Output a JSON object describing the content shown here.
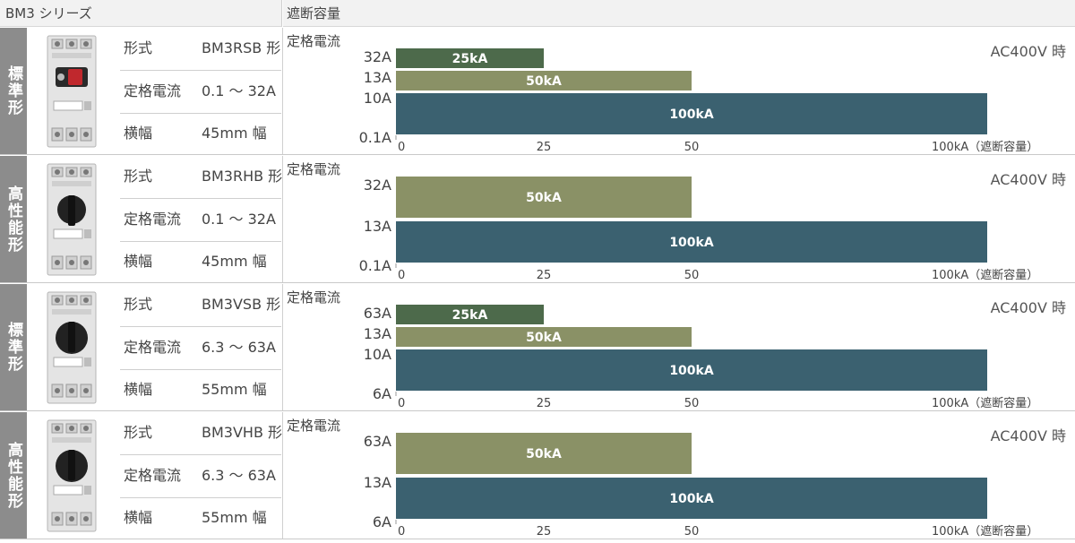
{
  "header": {
    "series_title": "BM3 シリーズ",
    "capacity_title": "遮断容量"
  },
  "rows": [
    {
      "type_label": "標準形",
      "specs": [
        {
          "label": "形式",
          "value": "BM3RSB 形"
        },
        {
          "label": "定格電流",
          "value": "0.1 ～ 32A"
        },
        {
          "label": "横幅",
          "value": "45mm 幅"
        }
      ],
      "product_style": "red-knob",
      "chart_data": {
        "type": "bar",
        "orientation": "horizontal",
        "ylabel": "定格電流",
        "condition": "AC400V 時",
        "x_ticks": [
          "0",
          "25",
          "50",
          "100kA（遮断容量）"
        ],
        "xlim": [
          0,
          100
        ],
        "y_tick_labels": [
          "32A",
          "13A",
          "10A",
          "0.1A"
        ],
        "bars": [
          {
            "label": "25kA",
            "value": 25,
            "color": "#4d6a4b"
          },
          {
            "label": "50kA",
            "value": 50,
            "color": "#8a9166"
          },
          {
            "label": "100kA",
            "value": 100,
            "color": "#3b6170"
          }
        ]
      }
    },
    {
      "type_label": "高性能形",
      "specs": [
        {
          "label": "形式",
          "value": "BM3RHB 形"
        },
        {
          "label": "定格電流",
          "value": "0.1 ～ 32A"
        },
        {
          "label": "横幅",
          "value": "45mm 幅"
        }
      ],
      "product_style": "black-knob",
      "chart_data": {
        "type": "bar",
        "orientation": "horizontal",
        "ylabel": "定格電流",
        "condition": "AC400V 時",
        "x_ticks": [
          "0",
          "25",
          "50",
          "100kA（遮断容量）"
        ],
        "xlim": [
          0,
          100
        ],
        "y_tick_labels": [
          "32A",
          "13A",
          "0.1A"
        ],
        "bars": [
          {
            "label": "50kA",
            "value": 50,
            "color": "#8a9166"
          },
          {
            "label": "100kA",
            "value": 100,
            "color": "#3b6170"
          }
        ]
      }
    },
    {
      "type_label": "標準形",
      "specs": [
        {
          "label": "形式",
          "value": "BM3VSB 形"
        },
        {
          "label": "定格電流",
          "value": "6.3 ～ 63A"
        },
        {
          "label": "横幅",
          "value": "55mm 幅"
        }
      ],
      "product_style": "black-knob-wide",
      "chart_data": {
        "type": "bar",
        "orientation": "horizontal",
        "ylabel": "定格電流",
        "condition": "AC400V 時",
        "x_ticks": [
          "0",
          "25",
          "50",
          "100kA（遮断容量）"
        ],
        "xlim": [
          0,
          100
        ],
        "y_tick_labels": [
          "63A",
          "13A",
          "10A",
          "6A"
        ],
        "bars": [
          {
            "label": "25kA",
            "value": 25,
            "color": "#4d6a4b"
          },
          {
            "label": "50kA",
            "value": 50,
            "color": "#8a9166"
          },
          {
            "label": "100kA",
            "value": 100,
            "color": "#3b6170"
          }
        ]
      }
    },
    {
      "type_label": "高性能形",
      "specs": [
        {
          "label": "形式",
          "value": "BM3VHB 形"
        },
        {
          "label": "定格電流",
          "value": "6.3 ～ 63A"
        },
        {
          "label": "横幅",
          "value": "55mm 幅"
        }
      ],
      "product_style": "black-knob-wide",
      "chart_data": {
        "type": "bar",
        "orientation": "horizontal",
        "ylabel": "定格電流",
        "condition": "AC400V 時",
        "x_ticks": [
          "0",
          "25",
          "50",
          "100kA（遮断容量）"
        ],
        "xlim": [
          0,
          100
        ],
        "y_tick_labels": [
          "63A",
          "13A",
          "6A"
        ],
        "bars": [
          {
            "label": "50kA",
            "value": 50,
            "color": "#8a9166"
          },
          {
            "label": "100kA",
            "value": 100,
            "color": "#3b6170"
          }
        ]
      }
    }
  ]
}
